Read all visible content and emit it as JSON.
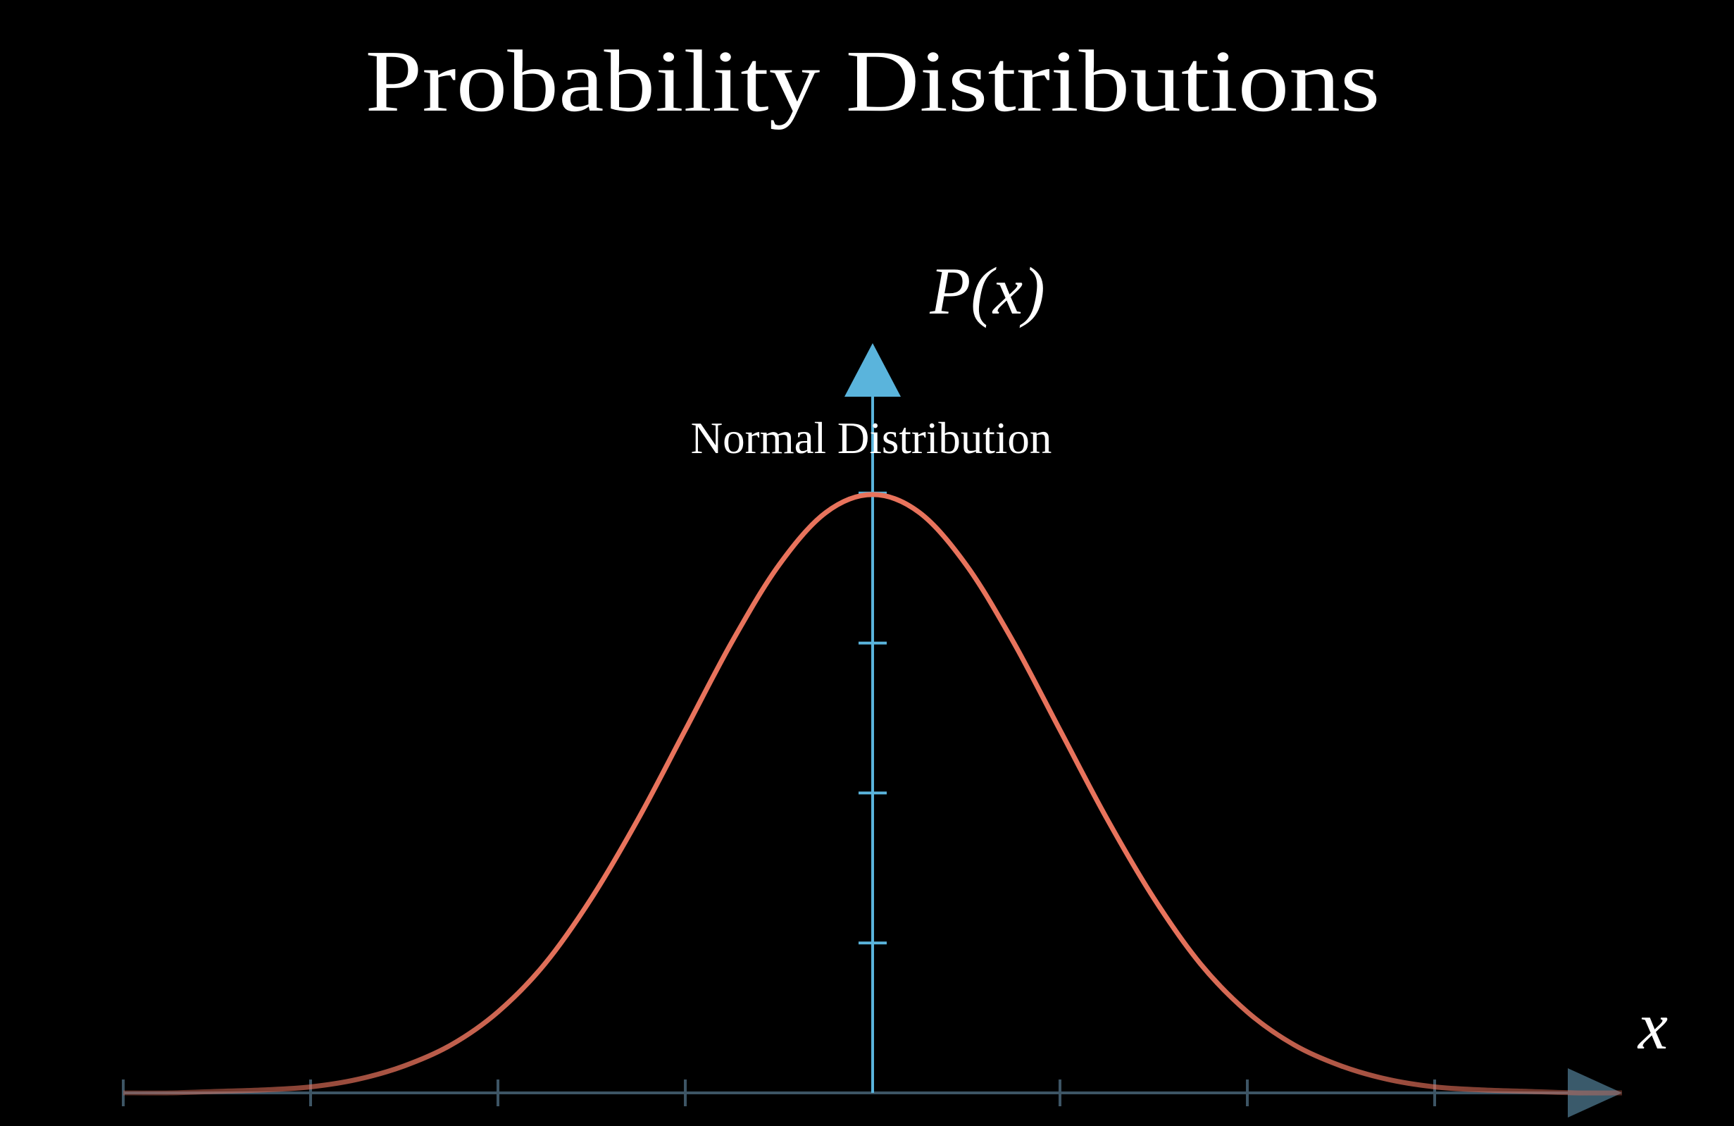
{
  "chart_data": {
    "type": "line",
    "title": "Probability Distributions",
    "x_label": "x",
    "y_label": "P(x)",
    "x": [
      -4,
      -3.75,
      -3.5,
      -3.25,
      -3,
      -2.75,
      -2.5,
      -2.25,
      -2,
      -1.75,
      -1.5,
      -1.25,
      -1,
      -0.75,
      -0.5,
      -0.25,
      0,
      0.25,
      0.5,
      0.75,
      1,
      1.25,
      1.5,
      1.75,
      2,
      2.25,
      2.5,
      2.75,
      3,
      3.25,
      3.5,
      3.75,
      4
    ],
    "series": [
      {
        "name": "Normal Distribution",
        "color": "#e8735c",
        "values": [
          0.0,
          0.0,
          0.001,
          0.002,
          0.004,
          0.009,
          0.018,
          0.032,
          0.054,
          0.086,
          0.13,
          0.183,
          0.242,
          0.301,
          0.352,
          0.387,
          0.399,
          0.387,
          0.352,
          0.301,
          0.242,
          0.183,
          0.13,
          0.086,
          0.054,
          0.032,
          0.018,
          0.009,
          0.004,
          0.002,
          0.001,
          0.0,
          0.0
        ]
      }
    ],
    "xlim": [
      -4,
      4
    ],
    "xticks": [
      -4,
      -3,
      -2,
      -1,
      1,
      2,
      3
    ],
    "ylim": [
      0,
      0.5
    ],
    "yticks": [
      0.1,
      0.2,
      0.3,
      0.4
    ]
  }
}
